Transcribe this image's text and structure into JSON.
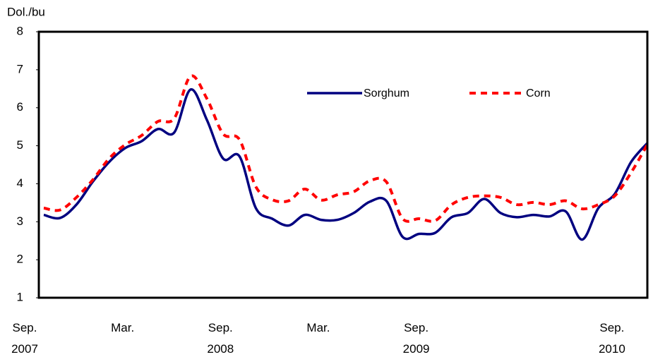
{
  "chart_data": {
    "type": "line",
    "y_label": "Dol./bu",
    "categories": [
      "Sep. 2007",
      null,
      null,
      null,
      null,
      null,
      "Mar.",
      null,
      null,
      null,
      null,
      null,
      "Sep. 2008",
      null,
      null,
      null,
      null,
      null,
      "Mar.",
      null,
      null,
      null,
      null,
      null,
      "Sep. 2009",
      null,
      null,
      null,
      null,
      null,
      null,
      null,
      null,
      null,
      null,
      null,
      "Sep. 2010",
      null
    ],
    "series": [
      {
        "name": "Sorghum",
        "color": "#000080",
        "style": "solid",
        "values": [
          3.18,
          3.1,
          3.45,
          4.05,
          4.57,
          4.94,
          5.12,
          5.44,
          5.35,
          6.48,
          5.68,
          4.66,
          4.72,
          3.36,
          3.08,
          2.9,
          3.18,
          3.05,
          3.05,
          3.23,
          3.53,
          3.55,
          2.6,
          2.68,
          2.71,
          3.12,
          3.23,
          3.6,
          3.23,
          3.12,
          3.18,
          3.14,
          3.27,
          2.53,
          3.36,
          3.73,
          4.57,
          5.07
        ]
      },
      {
        "name": "Corn",
        "color": "#ff0000",
        "style": "dashed",
        "values": [
          3.36,
          3.31,
          3.64,
          4.1,
          4.66,
          5.03,
          5.27,
          5.64,
          5.72,
          6.83,
          6.24,
          5.31,
          5.16,
          3.92,
          3.58,
          3.55,
          3.86,
          3.57,
          3.71,
          3.79,
          4.08,
          4.05,
          3.08,
          3.08,
          3.03,
          3.45,
          3.64,
          3.68,
          3.64,
          3.45,
          3.51,
          3.45,
          3.55,
          3.34,
          3.45,
          3.68,
          4.29,
          5.03
        ]
      }
    ],
    "ylim": [
      1,
      8
    ],
    "yticks": [
      1,
      2,
      3,
      4,
      5,
      6,
      7,
      8
    ],
    "grid": false
  }
}
